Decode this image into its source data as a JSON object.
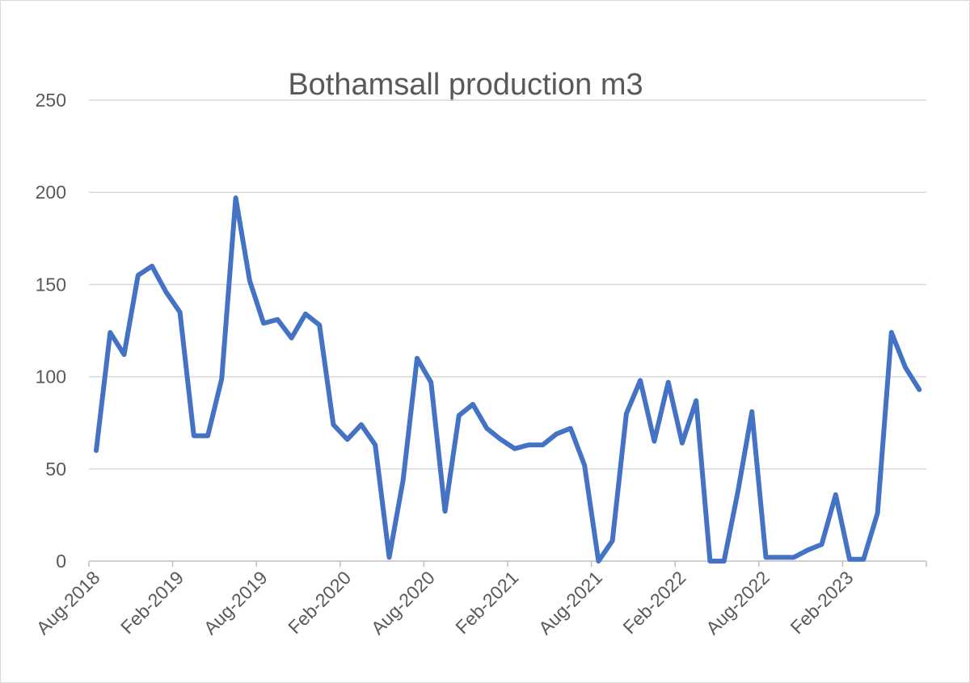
{
  "chart_data": {
    "type": "line",
    "title": "Bothamsall production m3",
    "xlabel": "",
    "ylabel": "",
    "ylim": [
      0,
      250
    ],
    "yticks": [
      "0",
      "50",
      "100",
      "150",
      "200",
      "250"
    ],
    "x_tick_labels": [
      "Aug-2018",
      "Feb-2019",
      "Aug-2019",
      "Feb-2020",
      "Aug-2020",
      "Feb-2021",
      "Aug-2021",
      "Feb-2022",
      "Aug-2022",
      "Feb-2023"
    ],
    "grid": true,
    "legend": "none",
    "line_color": "#4472c4",
    "x": [
      "Aug-2018",
      "Sep-2018",
      "Oct-2018",
      "Nov-2018",
      "Dec-2018",
      "Jan-2019",
      "Feb-2019",
      "Mar-2019",
      "Apr-2019",
      "May-2019",
      "Jun-2019",
      "Jul-2019",
      "Aug-2019",
      "Sep-2019",
      "Oct-2019",
      "Nov-2019",
      "Dec-2019",
      "Jan-2020",
      "Feb-2020",
      "Mar-2020",
      "Apr-2020",
      "May-2020",
      "Jun-2020",
      "Jul-2020",
      "Aug-2020",
      "Sep-2020",
      "Oct-2020",
      "Nov-2020",
      "Dec-2020",
      "Jan-2021",
      "Feb-2021",
      "Mar-2021",
      "Apr-2021",
      "May-2021",
      "Jun-2021",
      "Jul-2021",
      "Aug-2021",
      "Sep-2021",
      "Oct-2021",
      "Nov-2021",
      "Dec-2021",
      "Jan-2022",
      "Feb-2022",
      "Mar-2022",
      "Apr-2022",
      "May-2022",
      "Jun-2022",
      "Jul-2022",
      "Aug-2022",
      "Sep-2022",
      "Oct-2022",
      "Nov-2022",
      "Dec-2022",
      "Jan-2023",
      "Feb-2023",
      "Mar-2023",
      "Apr-2023",
      "May-2023",
      "Jun-2023",
      "Jul-2023"
    ],
    "series": [
      {
        "values": [
          60,
          124,
          112,
          155,
          160,
          146,
          135,
          68,
          68,
          99,
          197,
          152,
          129,
          131,
          121,
          134,
          128,
          74,
          66,
          74,
          63,
          2,
          44,
          110,
          97,
          27,
          79,
          85,
          72,
          66,
          61,
          63,
          63,
          69,
          72,
          52,
          0,
          11,
          80,
          98,
          65,
          97,
          64,
          87,
          0,
          0,
          38,
          81,
          2,
          2,
          2,
          6,
          9,
          36,
          1,
          1,
          26,
          124,
          105,
          93
        ]
      }
    ]
  }
}
